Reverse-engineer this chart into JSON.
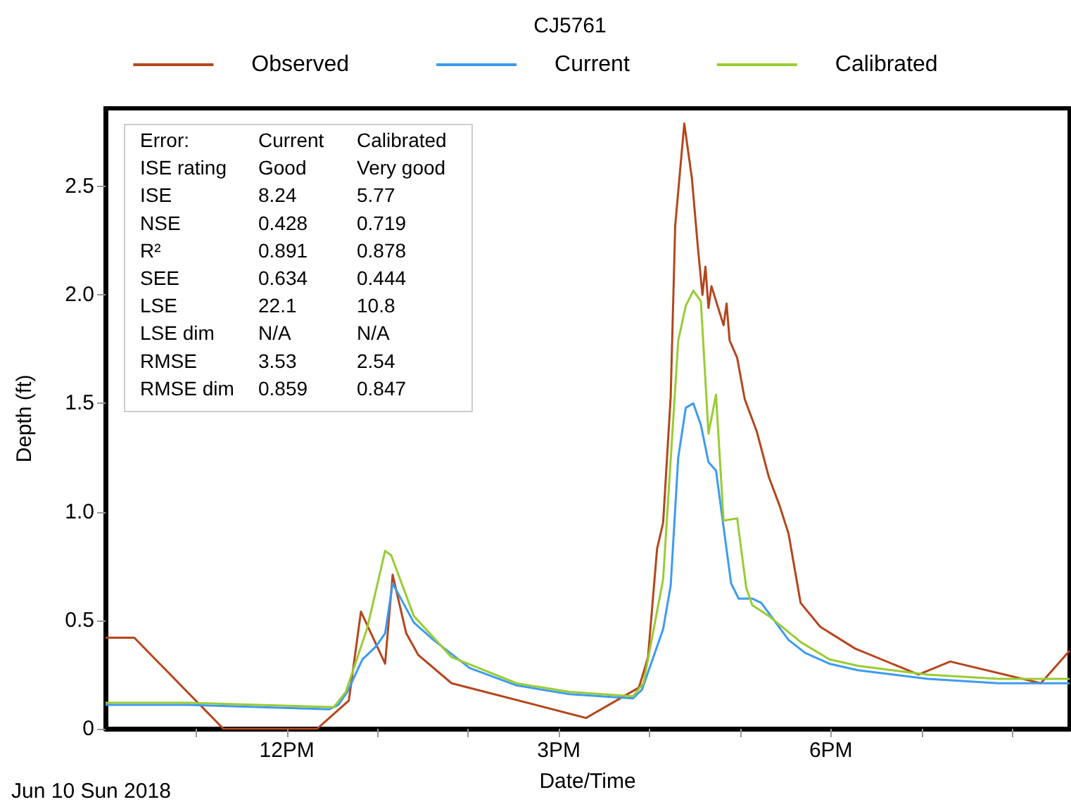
{
  "chart_data": {
    "type": "line",
    "title": "CJ5761",
    "xlabel": "Date/Time",
    "ylabel": "Depth (ft)",
    "annotations": [
      "Jun 10 Sun 2018",
      "Error:",
      "Current",
      "Calibrated",
      "ISE rating",
      "Good",
      "Very good",
      "ISE",
      "8.24",
      "5.77",
      "NSE",
      "0.428",
      "0.719",
      "R²",
      "0.891",
      "0.878",
      "SEE",
      "0.634",
      "0.444",
      "LSE",
      "22.1",
      "10.8",
      "LSE dim",
      "N/A",
      "N/A",
      "RMSE",
      "3.53",
      "2.54",
      "RMSE dim",
      "0.859",
      "0.847"
    ],
    "series": [
      {
        "name": "Observed",
        "color": "#b4461c",
        "x": [
          "2018-06-10T10:00",
          "2018-06-10T10:19",
          "2018-06-10T11:18",
          "2018-06-10T12:20",
          "2018-06-10T12:41",
          "2018-06-10T12:49",
          "2018-06-10T13:05",
          "2018-06-10T13:10",
          "2018-06-10T13:19",
          "2018-06-10T13:27",
          "2018-06-10T13:49",
          "2018-06-10T15:18",
          "2018-06-10T15:53",
          "2018-06-10T15:59",
          "2018-06-10T16:05",
          "2018-06-10T16:09",
          "2018-06-10T16:14",
          "2018-06-10T16:17",
          "2018-06-10T16:23",
          "2018-06-10T16:28",
          "2018-06-10T16:32",
          "2018-06-10T16:35",
          "2018-06-10T16:37",
          "2018-06-10T16:39",
          "2018-06-10T16:41",
          "2018-06-10T16:49",
          "2018-06-10T16:51",
          "2018-06-10T16:53",
          "2018-06-10T16:58",
          "2018-06-10T17:03",
          "2018-06-10T17:11",
          "2018-06-10T17:19",
          "2018-06-10T17:26",
          "2018-06-10T17:32",
          "2018-06-10T17:37",
          "2018-06-10T17:40",
          "2018-06-10T17:53",
          "2018-06-10T18:16",
          "2018-06-10T18:58",
          "2018-06-10T19:19",
          "2018-06-10T20:19",
          "2018-06-10T20:38"
        ],
        "values": [
          0.42,
          0.42,
          0,
          0,
          0.13,
          0.54,
          0.3,
          0.71,
          0.44,
          0.34,
          0.21,
          0.05,
          0.19,
          0.33,
          0.83,
          0.95,
          1.53,
          2.32,
          2.79,
          2.54,
          2.22,
          2.0,
          2.13,
          1.94,
          2.04,
          1.86,
          1.96,
          1.79,
          1.71,
          1.52,
          1.37,
          1.16,
          1.03,
          0.9,
          0.7,
          0.58,
          0.47,
          0.37,
          0.25,
          0.31,
          0.21,
          0.36
        ]
      },
      {
        "name": "Current",
        "color": "#3c9bf0",
        "x": [
          "2018-06-10T10:00",
          "2018-06-10T10:55",
          "2018-06-10T12:28",
          "2018-06-10T12:34",
          "2018-06-10T12:40",
          "2018-06-10T12:50",
          "2018-06-10T12:59",
          "2018-06-10T13:05",
          "2018-06-10T13:10",
          "2018-06-10T13:24",
          "2018-06-10T13:37",
          "2018-06-10T14:01",
          "2018-06-10T14:32",
          "2018-06-10T15:07",
          "2018-06-10T15:49",
          "2018-06-10T15:55",
          "2018-06-10T16:09",
          "2018-06-10T16:14",
          "2018-06-10T16:19",
          "2018-06-10T16:24",
          "2018-06-10T16:29",
          "2018-06-10T16:34",
          "2018-06-10T16:39",
          "2018-06-10T16:44",
          "2018-06-10T16:54",
          "2018-06-10T16:59",
          "2018-06-10T17:08",
          "2018-06-10T17:14",
          "2018-06-10T17:32",
          "2018-06-10T17:43",
          "2018-06-10T17:59",
          "2018-06-10T18:18",
          "2018-06-10T19:04",
          "2018-06-10T19:51",
          "2018-06-10T20:38"
        ],
        "values": [
          0.11,
          0.11,
          0.09,
          0.11,
          0.17,
          0.32,
          0.38,
          0.44,
          0.67,
          0.49,
          0.41,
          0.28,
          0.2,
          0.16,
          0.14,
          0.18,
          0.46,
          0.66,
          1.25,
          1.48,
          1.5,
          1.4,
          1.23,
          1.19,
          0.67,
          0.6,
          0.6,
          0.58,
          0.41,
          0.35,
          0.3,
          0.27,
          0.23,
          0.21,
          0.21
        ]
      },
      {
        "name": "Calibrated",
        "color": "#99cc33",
        "x": [
          "2018-06-10T10:00",
          "2018-06-10T10:55",
          "2018-06-10T12:31",
          "2018-06-10T12:39",
          "2018-06-10T12:53",
          "2018-06-10T13:05",
          "2018-06-10T13:09",
          "2018-06-10T13:24",
          "2018-06-10T13:49",
          "2018-06-10T14:32",
          "2018-06-10T15:07",
          "2018-06-10T15:49",
          "2018-06-10T15:56",
          "2018-06-10T16:09",
          "2018-06-10T16:19",
          "2018-06-10T16:24",
          "2018-06-10T16:29",
          "2018-06-10T16:34",
          "2018-06-10T16:39",
          "2018-06-10T16:44",
          "2018-06-10T16:49",
          "2018-06-10T16:58",
          "2018-06-10T17:04",
          "2018-06-10T17:08",
          "2018-06-10T17:19",
          "2018-06-10T17:40",
          "2018-06-10T17:59",
          "2018-06-10T18:18",
          "2018-06-10T19:04",
          "2018-06-10T19:51",
          "2018-06-10T20:38"
        ],
        "values": [
          0.12,
          0.12,
          0.1,
          0.17,
          0.46,
          0.82,
          0.8,
          0.52,
          0.33,
          0.21,
          0.17,
          0.15,
          0.21,
          0.69,
          1.79,
          1.95,
          2.02,
          1.97,
          1.36,
          1.54,
          0.96,
          0.97,
          0.65,
          0.57,
          0.52,
          0.4,
          0.32,
          0.29,
          0.25,
          0.23,
          0.23
        ]
      }
    ],
    "xlim": [
      "2018-06-10T10:00",
      "2018-06-10T20:38"
    ],
    "xticks": [
      {
        "value": "2018-06-10T11:00",
        "label": null
      },
      {
        "value": "2018-06-10T12:00",
        "label": "12PM"
      },
      {
        "value": "2018-06-10T13:00",
        "label": null
      },
      {
        "value": "2018-06-10T14:00",
        "label": null
      },
      {
        "value": "2018-06-10T15:00",
        "label": "3PM"
      },
      {
        "value": "2018-06-10T16:00",
        "label": null
      },
      {
        "value": "2018-06-10T17:00",
        "label": null
      },
      {
        "value": "2018-06-10T18:00",
        "label": "6PM"
      },
      {
        "value": "2018-06-10T19:00",
        "label": null
      },
      {
        "value": "2018-06-10T20:00",
        "label": null
      }
    ],
    "ylim": [
      0,
      2.86
    ],
    "yticks": [
      0,
      {
        "value": 0.5,
        "label": "0.5"
      },
      {
        "value": 1,
        "label": "1.0"
      },
      {
        "value": 1.5,
        "label": "1.5"
      },
      {
        "value": 2,
        "label": "2.0"
      },
      {
        "value": 2.5,
        "label": "2.5"
      }
    ],
    "grid": false,
    "legend": "top",
    "marker": "none",
    "line_style": "solid"
  }
}
